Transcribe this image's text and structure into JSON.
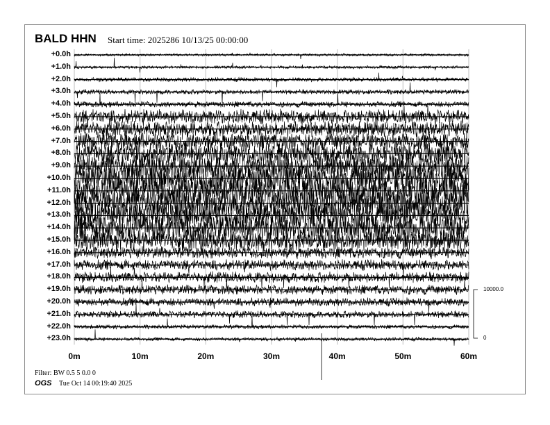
{
  "header": {
    "station": "BALD HHN",
    "start_time": "Start time: 2025286 10/13/25 00:00:00"
  },
  "footer": {
    "filter": "Filter: BW 0.5 5 0.0 0",
    "agency": "OGS",
    "plot_time": "Tue Oct 14 00:19:40 2025"
  },
  "chart_data": {
    "type": "line",
    "title": "BALD HHN",
    "row_labels": [
      "+0.0h",
      "+1.0h",
      "+2.0h",
      "+3.0h",
      "+4.0h",
      "+5.0h",
      "+6.0h",
      "+7.0h",
      "+8.0h",
      "+9.0h",
      "+10.0h",
      "+11.0h",
      "+12.0h",
      "+13.0h",
      "+14.0h",
      "+15.0h",
      "+16.0h",
      "+17.0h",
      "+18.0h",
      "+19.0h",
      "+20.0h",
      "+21.0h",
      "+22.0h",
      "+23.0h"
    ],
    "x_ticks": [
      "0m",
      "10m",
      "20m",
      "30m",
      "40m",
      "50m",
      "60m"
    ],
    "xlim": [
      0,
      60
    ],
    "grid": true,
    "scale_bar": {
      "top_label": "10000.0",
      "bottom_label": "0",
      "top": 10000,
      "bottom": 0
    },
    "approx_noise_amplitude_counts": [
      200,
      250,
      350,
      400,
      500,
      1200,
      1300,
      1500,
      1800,
      2000,
      2500,
      2500,
      2500,
      2300,
      2200,
      1800,
      1000,
      900,
      900,
      800,
      700,
      600,
      350,
      300
    ],
    "trace_color": "#000000",
    "grid_color": "#c8c8c8"
  }
}
